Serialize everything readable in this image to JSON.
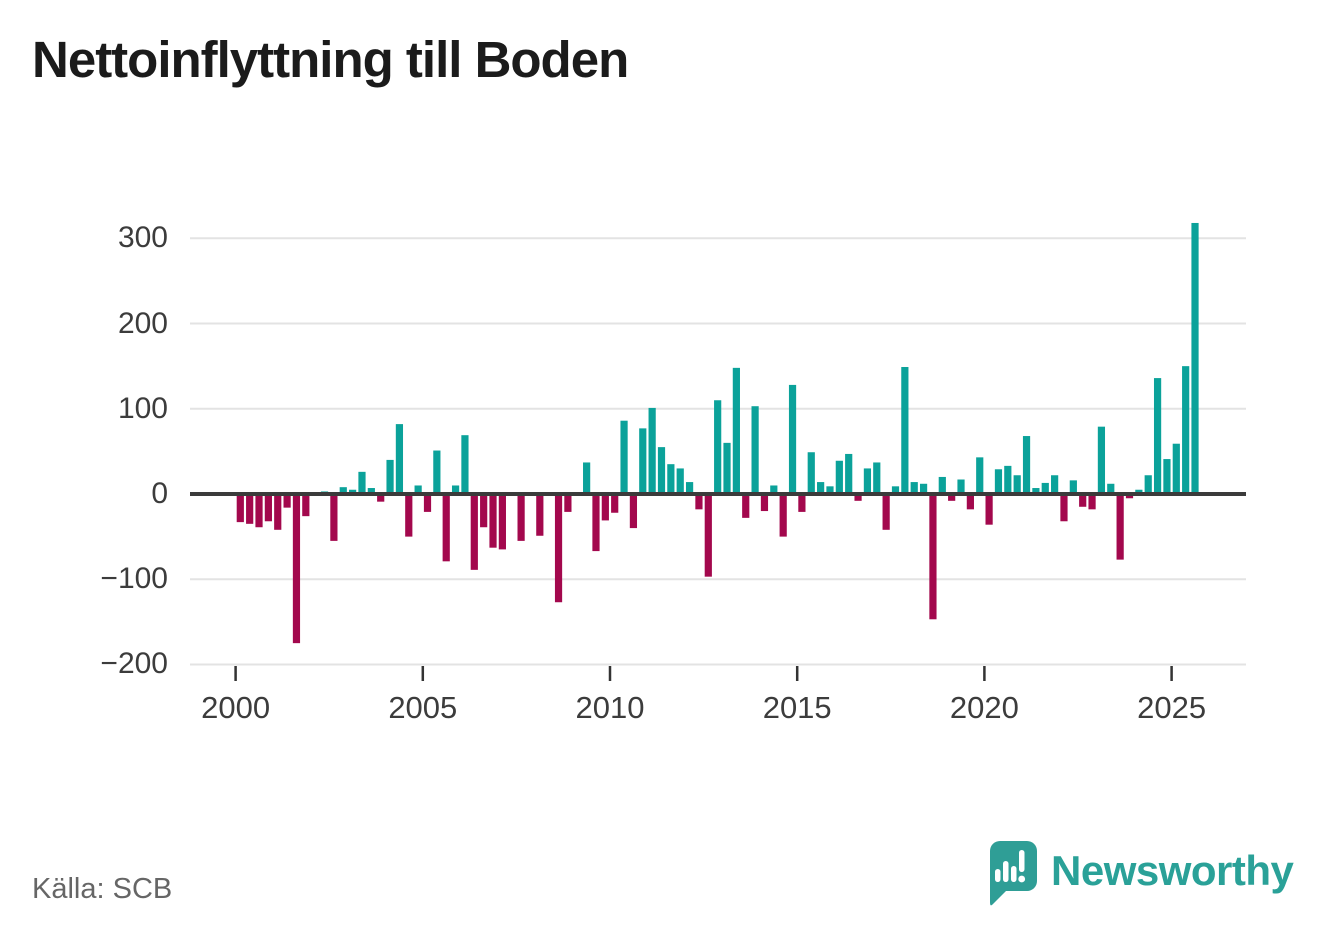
{
  "page": {
    "title": "Nettoinflyttning till Boden",
    "source": "Källa: SCB",
    "brand": "Newsworthy"
  },
  "chart_data": {
    "type": "bar",
    "title": "Nettoinflyttning till Boden",
    "frequency": "quarterly",
    "start_period": "2000Q1",
    "end_period": "2025Q3",
    "values": [
      -33,
      -35,
      -39,
      -32,
      -42,
      -16,
      -175,
      -26,
      0,
      3,
      -55,
      8,
      5,
      26,
      7,
      -9,
      40,
      82,
      -50,
      10,
      -21,
      51,
      -79,
      10,
      69,
      -89,
      -39,
      -63,
      -65,
      0,
      -55,
      0,
      -49,
      0,
      -127,
      -21,
      0,
      37,
      -67,
      -31,
      -22,
      86,
      -40,
      77,
      101,
      55,
      35,
      30,
      14,
      -18,
      -97,
      110,
      60,
      148,
      -28,
      103,
      -20,
      10,
      -50,
      128,
      -21,
      49,
      14,
      9,
      39,
      47,
      -8,
      30,
      37,
      -42,
      9,
      149,
      14,
      12,
      -147,
      20,
      -8,
      17,
      -18,
      43,
      -36,
      29,
      33,
      22,
      68,
      7,
      13,
      22,
      -32,
      16,
      -15,
      -18,
      79,
      12,
      -77,
      -5,
      5,
      22,
      136,
      41,
      59,
      150,
      318
    ],
    "x_tick_years": [
      2000,
      2005,
      2010,
      2015,
      2020,
      2025
    ],
    "y_ticks": [
      {
        "value": 300,
        "label": "300"
      },
      {
        "value": 200,
        "label": "200"
      },
      {
        "value": 100,
        "label": "100"
      },
      {
        "value": 0,
        "label": "0"
      },
      {
        "value": -100,
        "label": "−100"
      },
      {
        "value": -200,
        "label": "−200"
      }
    ],
    "ylim": [
      -200,
      330
    ],
    "grid": true,
    "legend": false,
    "colors": {
      "positive": "#0ba29a",
      "negative": "#a3084d",
      "gridline": "#e3e3e3",
      "zero_line": "#3b3b3b",
      "tick": "#333333",
      "axis_text": "#3c3c3c",
      "logo": "#2aa198"
    }
  }
}
